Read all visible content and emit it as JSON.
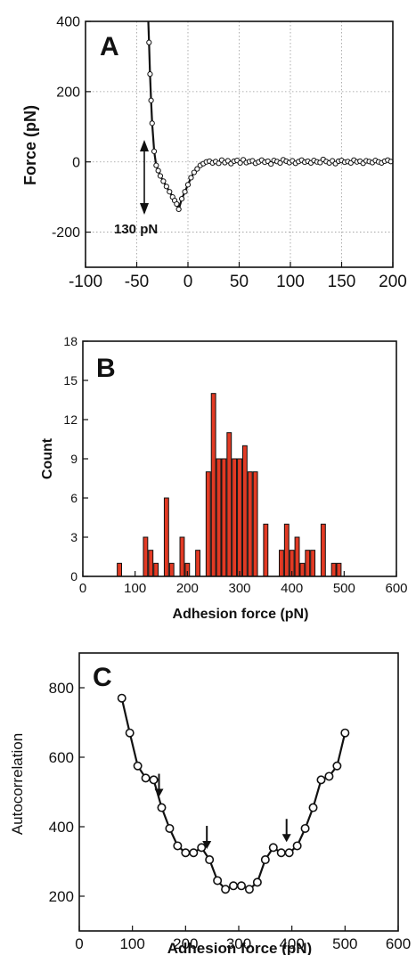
{
  "chart_data": [
    {
      "panel_label": "A",
      "type": "line",
      "ylabel": "Force (pN)",
      "xlabel": "",
      "xlim": [
        -100,
        200
      ],
      "ylim": [
        -300,
        400
      ],
      "xticks": [
        -100,
        -50,
        0,
        50,
        100,
        150,
        200
      ],
      "yticks": [
        -200,
        0,
        200,
        400
      ],
      "grid": true,
      "annotation": "130 pN",
      "x": [
        -38,
        -37,
        -36,
        -35,
        -33,
        -31,
        -29,
        -27,
        -24,
        -21,
        -18,
        -15,
        -13,
        -11,
        -9,
        -6,
        -3,
        0,
        3,
        6,
        9,
        12,
        15,
        18,
        21,
        24,
        27,
        30,
        33,
        36,
        39,
        42,
        45,
        48,
        51,
        54,
        57,
        60,
        63,
        66,
        69,
        72,
        75,
        78,
        81,
        84,
        87,
        90,
        93,
        96,
        99,
        102,
        105,
        108,
        111,
        114,
        117,
        120,
        123,
        126,
        129,
        132,
        135,
        138,
        141,
        144,
        147,
        150,
        153,
        156,
        159,
        162,
        165,
        168,
        171,
        174,
        177,
        180,
        183,
        186,
        189,
        192,
        195,
        198
      ],
      "y": [
        340,
        250,
        175,
        110,
        30,
        -10,
        -25,
        -40,
        -55,
        -70,
        -85,
        -100,
        -110,
        -120,
        -135,
        -105,
        -85,
        -65,
        -45,
        -30,
        -20,
        -10,
        -5,
        0,
        2,
        -3,
        1,
        -4,
        5,
        -2,
        3,
        -5,
        2,
        4,
        -3,
        6,
        -2,
        1,
        3,
        -4,
        0,
        5,
        -1,
        2,
        -6,
        4,
        1,
        -3,
        6,
        2,
        -2,
        3,
        -4,
        1,
        5,
        -1,
        2,
        -3,
        4,
        0,
        -2,
        7,
        1,
        -3,
        3,
        -5,
        2,
        4,
        -1,
        1,
        -3,
        5,
        0,
        2,
        -4,
        3,
        1,
        -2,
        4,
        0,
        -3,
        2,
        5,
        1
      ]
    },
    {
      "panel_label": "B",
      "type": "bar",
      "xlabel": "Adhesion force (pN)",
      "ylabel": "Count",
      "xlim": [
        0,
        600
      ],
      "ylim": [
        0,
        18
      ],
      "xticks": [
        0,
        100,
        200,
        300,
        400,
        500,
        600
      ],
      "yticks": [
        0,
        3,
        6,
        9,
        12,
        15,
        18
      ],
      "grid": false,
      "bin_width": 10,
      "bins": [
        {
          "x": 70,
          "count": 1
        },
        {
          "x": 120,
          "count": 3
        },
        {
          "x": 130,
          "count": 2
        },
        {
          "x": 140,
          "count": 1
        },
        {
          "x": 160,
          "count": 6
        },
        {
          "x": 170,
          "count": 1
        },
        {
          "x": 190,
          "count": 3
        },
        {
          "x": 200,
          "count": 1
        },
        {
          "x": 220,
          "count": 2
        },
        {
          "x": 240,
          "count": 8
        },
        {
          "x": 250,
          "count": 14
        },
        {
          "x": 260,
          "count": 9
        },
        {
          "x": 270,
          "count": 9
        },
        {
          "x": 280,
          "count": 11
        },
        {
          "x": 290,
          "count": 9
        },
        {
          "x": 300,
          "count": 9
        },
        {
          "x": 310,
          "count": 10
        },
        {
          "x": 320,
          "count": 8
        },
        {
          "x": 330,
          "count": 8
        },
        {
          "x": 350,
          "count": 4
        },
        {
          "x": 380,
          "count": 2
        },
        {
          "x": 390,
          "count": 4
        },
        {
          "x": 400,
          "count": 2
        },
        {
          "x": 410,
          "count": 3
        },
        {
          "x": 420,
          "count": 1
        },
        {
          "x": 430,
          "count": 2
        },
        {
          "x": 440,
          "count": 2
        },
        {
          "x": 460,
          "count": 4
        },
        {
          "x": 480,
          "count": 1
        },
        {
          "x": 490,
          "count": 1
        }
      ]
    },
    {
      "panel_label": "C",
      "type": "line",
      "xlabel": "Adhesion force (pN)",
      "ylabel": "Autocorrelation",
      "xlim": [
        0,
        600
      ],
      "ylim": [
        100,
        900
      ],
      "xticks": [
        0,
        100,
        200,
        300,
        400,
        500,
        600
      ],
      "yticks": [
        200,
        400,
        600,
        800
      ],
      "grid": false,
      "arrows_at_x": [
        150,
        240,
        390
      ],
      "x": [
        80,
        95,
        110,
        125,
        140,
        155,
        170,
        185,
        200,
        215,
        230,
        245,
        260,
        275,
        290,
        305,
        320,
        335,
        350,
        365,
        380,
        395,
        410,
        425,
        440,
        455,
        470,
        485,
        500
      ],
      "y": [
        770,
        670,
        575,
        540,
        535,
        455,
        395,
        345,
        325,
        325,
        340,
        305,
        245,
        220,
        230,
        230,
        220,
        240,
        305,
        340,
        325,
        325,
        345,
        395,
        455,
        535,
        545,
        575,
        670
      ]
    }
  ]
}
